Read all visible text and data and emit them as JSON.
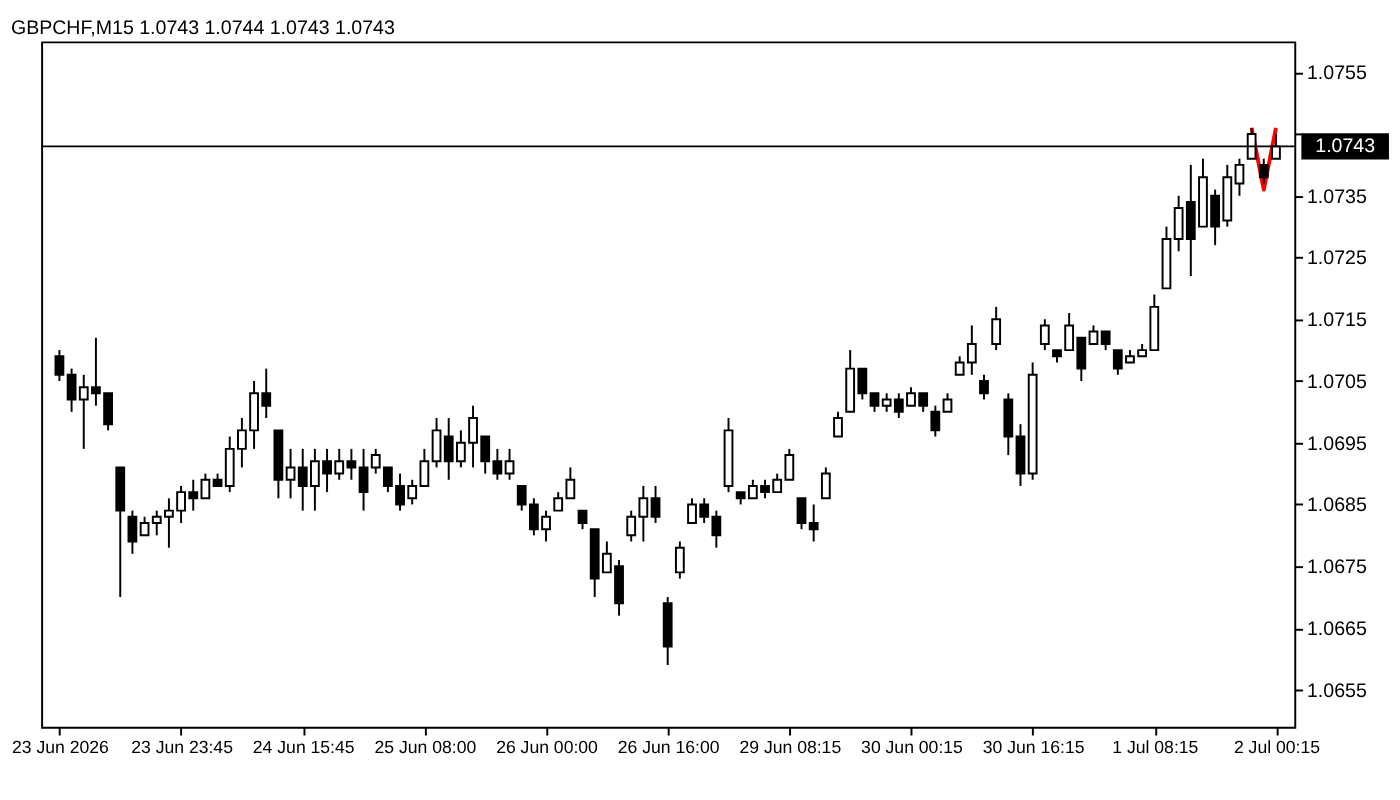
{
  "chart_data": {
    "type": "candlestick",
    "title": "GBPCHF,M15  1.0743 1.0744 1.0743 1.0743",
    "categories": [
      "23 Jun 2026",
      null,
      null,
      null,
      null,
      null,
      null,
      null,
      null,
      null,
      "23 Jun 23:45",
      null,
      null,
      null,
      null,
      null,
      null,
      null,
      null,
      null,
      "24 Jun 15:45",
      null,
      null,
      null,
      null,
      null,
      null,
      null,
      null,
      null,
      "25 Jun 08:00",
      null,
      null,
      null,
      null,
      null,
      null,
      null,
      null,
      null,
      "26 Jun 00:00",
      null,
      null,
      null,
      null,
      null,
      null,
      null,
      null,
      null,
      "26 Jun 16:00",
      null,
      null,
      null,
      null,
      null,
      null,
      null,
      null,
      null,
      "29 Jun 08:15",
      null,
      null,
      null,
      null,
      null,
      null,
      null,
      null,
      null,
      "30 Jun 00:15",
      null,
      null,
      null,
      null,
      null,
      null,
      null,
      null,
      null,
      "30 Jun 16:15",
      null,
      null,
      null,
      null,
      null,
      null,
      null,
      null,
      null,
      "1 Jul 08:15",
      null,
      null,
      null,
      null,
      null,
      null,
      null,
      null,
      null,
      "2 Jul 00:15"
    ],
    "series": [
      {
        "type": "candlestick",
        "color": "#000000",
        "ohlc": [
          [
            1.0709,
            1.071,
            1.0705,
            1.0706
          ],
          [
            1.0706,
            1.0707,
            1.07,
            1.0702
          ],
          [
            1.0702,
            1.0706,
            1.0694,
            1.0704
          ],
          [
            1.0704,
            1.0712,
            1.0701,
            1.0703
          ],
          [
            1.0703,
            1.0703,
            1.0697,
            1.0698
          ],
          [
            1.0691,
            1.0691,
            1.067,
            1.0684
          ],
          [
            1.0683,
            1.0684,
            1.0677,
            1.0679
          ],
          [
            1.068,
            1.0683,
            1.068,
            1.0682
          ],
          [
            1.0682,
            1.0684,
            1.068,
            1.0683
          ],
          [
            1.0683,
            1.0686,
            1.0678,
            1.0684
          ],
          [
            1.0684,
            1.0688,
            1.0682,
            1.0687
          ],
          [
            1.0687,
            1.0689,
            1.0684,
            1.0686
          ],
          [
            1.0686,
            1.069,
            1.0686,
            1.0689
          ],
          [
            1.0689,
            1.069,
            1.0688,
            1.0688
          ],
          [
            1.0688,
            1.0696,
            1.0687,
            1.0694
          ],
          [
            1.0694,
            1.0699,
            1.0691,
            1.0697
          ],
          [
            1.0697,
            1.0705,
            1.0694,
            1.0703
          ],
          [
            1.0703,
            1.0707,
            1.0699,
            1.0701
          ],
          [
            1.0697,
            1.0697,
            1.0686,
            1.0689
          ],
          [
            1.0689,
            1.0694,
            1.0686,
            1.0691
          ],
          [
            1.0691,
            1.0694,
            1.0684,
            1.0688
          ],
          [
            1.0688,
            1.0694,
            1.0684,
            1.0692
          ],
          [
            1.0692,
            1.0694,
            1.0687,
            1.069
          ],
          [
            1.069,
            1.0694,
            1.0689,
            1.0692
          ],
          [
            1.0692,
            1.0694,
            1.0689,
            1.0691
          ],
          [
            1.0691,
            1.0694,
            1.0684,
            1.0687
          ],
          [
            1.0691,
            1.0694,
            1.069,
            1.0693
          ],
          [
            1.0691,
            1.0691,
            1.0687,
            1.0688
          ],
          [
            1.0688,
            1.069,
            1.0684,
            1.0685
          ],
          [
            1.0686,
            1.0689,
            1.0685,
            1.0688
          ],
          [
            1.0688,
            1.0694,
            1.0688,
            1.0692
          ],
          [
            1.0692,
            1.0699,
            1.0691,
            1.0697
          ],
          [
            1.0696,
            1.0699,
            1.0689,
            1.0692
          ],
          [
            1.0692,
            1.0697,
            1.0691,
            1.0695
          ],
          [
            1.0695,
            1.0701,
            1.0691,
            1.0699
          ],
          [
            1.0696,
            1.0696,
            1.069,
            1.0692
          ],
          [
            1.0692,
            1.0694,
            1.0689,
            1.069
          ],
          [
            1.069,
            1.0694,
            1.0689,
            1.0692
          ],
          [
            1.0688,
            1.0688,
            1.0684,
            1.0685
          ],
          [
            1.0685,
            1.0686,
            1.068,
            1.0681
          ],
          [
            1.0681,
            1.0684,
            1.0679,
            1.0683
          ],
          [
            1.0684,
            1.0687,
            1.0684,
            1.0686
          ],
          [
            1.0686,
            1.0691,
            1.0686,
            1.0689
          ],
          [
            1.0684,
            1.0684,
            1.0681,
            1.0682
          ],
          [
            1.0681,
            1.0681,
            1.067,
            1.0673
          ],
          [
            1.0674,
            1.0679,
            1.0674,
            1.0677
          ],
          [
            1.0675,
            1.0676,
            1.0667,
            1.0669
          ],
          [
            1.068,
            1.0684,
            1.0679,
            1.0683
          ],
          [
            1.0683,
            1.0688,
            1.0679,
            1.0686
          ],
          [
            1.0686,
            1.0688,
            1.0682,
            1.0683
          ],
          [
            1.0669,
            1.067,
            1.0659,
            1.0662
          ],
          [
            1.0674,
            1.0679,
            1.0673,
            1.0678
          ],
          [
            1.0682,
            1.0686,
            1.0682,
            1.0685
          ],
          [
            1.0685,
            1.0686,
            1.0682,
            1.0683
          ],
          [
            1.0683,
            1.0684,
            1.0678,
            1.068
          ],
          [
            1.0688,
            1.0699,
            1.0687,
            1.0697
          ],
          [
            1.0687,
            1.0687,
            1.0685,
            1.0686
          ],
          [
            1.0686,
            1.0689,
            1.0686,
            1.0688
          ],
          [
            1.0688,
            1.0689,
            1.0686,
            1.0687
          ],
          [
            1.0687,
            1.069,
            1.0687,
            1.0689
          ],
          [
            1.0689,
            1.0694,
            1.0689,
            1.0693
          ],
          [
            1.0686,
            1.0686,
            1.0681,
            1.0682
          ],
          [
            1.0682,
            1.0685,
            1.0679,
            1.0681
          ],
          [
            1.0686,
            1.0691,
            1.0686,
            1.069
          ],
          [
            1.0696,
            1.07,
            1.0696,
            1.0699
          ],
          [
            1.07,
            1.071,
            1.07,
            1.0707
          ],
          [
            1.0707,
            1.0707,
            1.0702,
            1.0703
          ],
          [
            1.0703,
            1.0703,
            1.07,
            1.0701
          ],
          [
            1.0701,
            1.0703,
            1.07,
            1.0702
          ],
          [
            1.0702,
            1.0703,
            1.0699,
            1.07
          ],
          [
            1.0701,
            1.0704,
            1.0701,
            1.0703
          ],
          [
            1.0703,
            1.0703,
            1.07,
            1.0701
          ],
          [
            1.07,
            1.0701,
            1.0696,
            1.0697
          ],
          [
            1.07,
            1.0703,
            1.07,
            1.0702
          ],
          [
            1.0706,
            1.0709,
            1.0706,
            1.0708
          ],
          [
            1.0708,
            1.0714,
            1.0706,
            1.0711
          ],
          [
            1.0705,
            1.0706,
            1.0702,
            1.0703
          ],
          [
            1.0711,
            1.0717,
            1.071,
            1.0715
          ],
          [
            1.0702,
            1.0703,
            1.0693,
            1.0696
          ],
          [
            1.0696,
            1.0698,
            1.0688,
            1.069
          ],
          [
            1.069,
            1.0708,
            1.0689,
            1.0706
          ],
          [
            1.0711,
            1.0715,
            1.071,
            1.0714
          ],
          [
            1.071,
            1.071,
            1.0708,
            1.0709
          ],
          [
            1.071,
            1.0716,
            1.071,
            1.0714
          ],
          [
            1.0712,
            1.0712,
            1.0705,
            1.0707
          ],
          [
            1.0711,
            1.0714,
            1.0711,
            1.0713
          ],
          [
            1.0713,
            1.0713,
            1.071,
            1.0711
          ],
          [
            1.071,
            1.071,
            1.0706,
            1.0707
          ],
          [
            1.0708,
            1.071,
            1.0708,
            1.0709
          ],
          [
            1.0709,
            1.0711,
            1.0709,
            1.071
          ],
          [
            1.071,
            1.0719,
            1.071,
            1.0717
          ],
          [
            1.072,
            1.073,
            1.072,
            1.0728
          ],
          [
            1.0728,
            1.0735,
            1.0726,
            1.0733
          ],
          [
            1.0734,
            1.074,
            1.0722,
            1.0728
          ],
          [
            1.073,
            1.0741,
            1.073,
            1.0738
          ],
          [
            1.0735,
            1.0736,
            1.0727,
            1.073
          ],
          [
            1.0731,
            1.074,
            1.073,
            1.0738
          ],
          [
            1.0737,
            1.0741,
            1.0735,
            1.074
          ],
          [
            1.0741,
            1.0746,
            1.0741,
            1.0745
          ],
          [
            1.074,
            1.0741,
            1.0737,
            1.0738
          ],
          [
            1.0741,
            1.0745,
            1.0741,
            1.0743
          ]
        ]
      },
      {
        "type": "line",
        "color": "#ff0000",
        "values": [
          null,
          null,
          null,
          null,
          null,
          null,
          null,
          null,
          null,
          null,
          null,
          null,
          null,
          null,
          null,
          null,
          null,
          null,
          null,
          null,
          null,
          null,
          null,
          null,
          null,
          null,
          null,
          null,
          null,
          null,
          null,
          null,
          null,
          null,
          null,
          null,
          null,
          null,
          null,
          null,
          null,
          null,
          null,
          null,
          null,
          null,
          null,
          null,
          null,
          null,
          null,
          null,
          null,
          null,
          null,
          null,
          null,
          null,
          null,
          null,
          null,
          null,
          null,
          null,
          null,
          null,
          null,
          null,
          null,
          null,
          null,
          null,
          null,
          null,
          null,
          null,
          null,
          null,
          null,
          null,
          null,
          null,
          null,
          null,
          null,
          null,
          null,
          null,
          null,
          null,
          null,
          null,
          null,
          null,
          null,
          null,
          null,
          null,
          1.0746,
          1.0736,
          1.0746
        ]
      }
    ],
    "ylim": [
      1.0649,
      1.076
    ],
    "yticks": [
      1.0655,
      1.0665,
      1.0675,
      1.0685,
      1.0695,
      1.0705,
      1.0715,
      1.0725,
      1.0735,
      {
        "value": 1.0745,
        "label": null
      },
      1.0755
    ],
    "ref_lines": [
      {
        "axis": "y",
        "value": 1.0743,
        "label": "1.0743",
        "color": "#000000"
      }
    ],
    "grid": false
  }
}
